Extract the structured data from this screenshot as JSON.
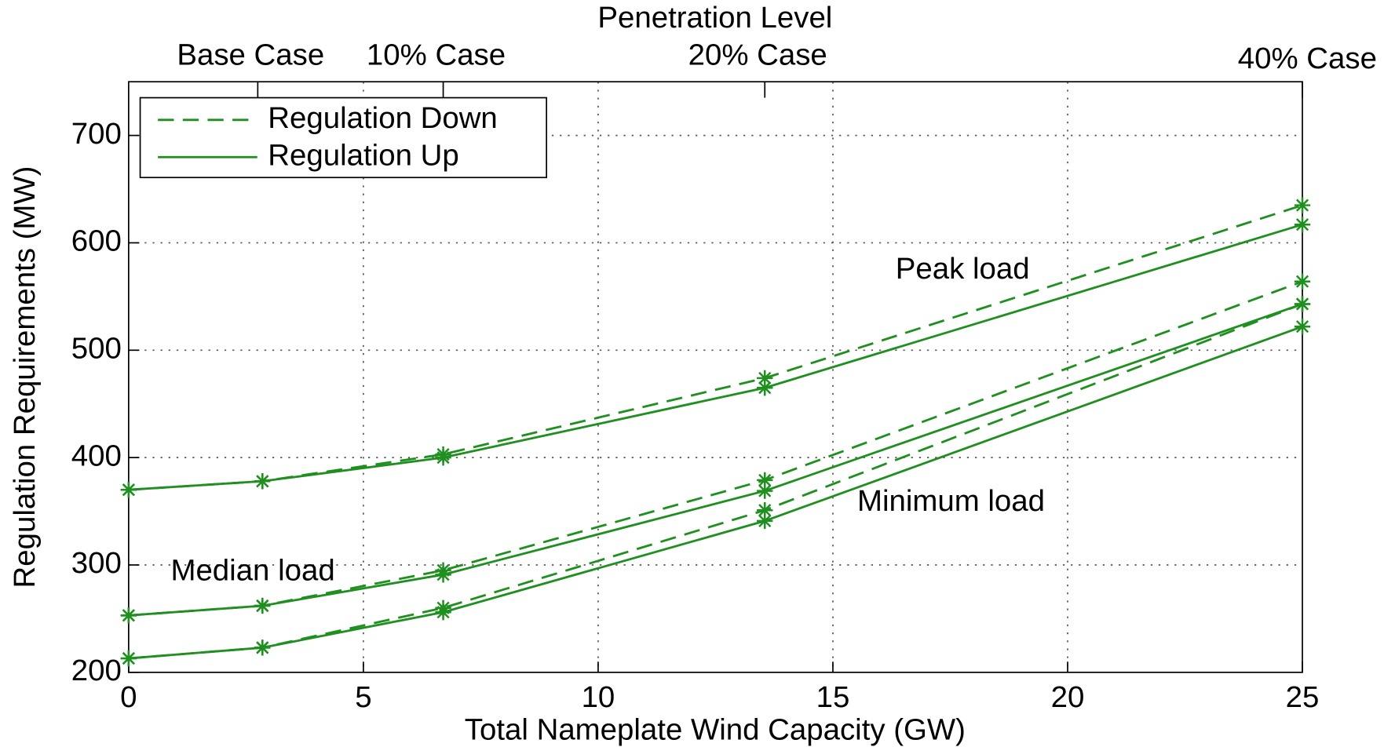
{
  "chart_data": {
    "type": "line",
    "title": "Penetration Level",
    "xlabel": "Total Nameplate Wind Capacity (GW)",
    "ylabel": "Regulation Requirements (MW)",
    "x": [
      0,
      2.85,
      6.7,
      13.55,
      25
    ],
    "xlim": [
      0,
      25
    ],
    "xticks": [
      0,
      5,
      10,
      15,
      20,
      25
    ],
    "ylim": [
      200,
      750
    ],
    "yticks": [
      200,
      300,
      400,
      500,
      600,
      700
    ],
    "top_ticks": [
      {
        "value": 2.75,
        "label": "Base Case"
      },
      {
        "value": 6.7,
        "label": "10% Case"
      },
      {
        "value": 13.55,
        "label": "20% Case"
      },
      {
        "value": 25,
        "label": "40% Case"
      }
    ],
    "grid": true,
    "color": "#1f8f1f",
    "legend_position": "upper left",
    "legend": [
      {
        "name": "Regulation Down",
        "dashed": true
      },
      {
        "name": "Regulation Up",
        "dashed": false
      }
    ],
    "groups": [
      {
        "label": "Peak load",
        "series": [
          {
            "dashed": true,
            "values": [
              370,
              378,
              403,
              474,
              635
            ]
          },
          {
            "dashed": false,
            "values": [
              370,
              378,
              400,
              465,
              617
            ]
          }
        ]
      },
      {
        "label": "Median load",
        "series": [
          {
            "dashed": true,
            "values": [
              253,
              262,
              295,
              379,
              564
            ]
          },
          {
            "dashed": false,
            "values": [
              253,
              262,
              291,
              369,
              543
            ]
          }
        ]
      },
      {
        "label": "Minimum load",
        "series": [
          {
            "dashed": true,
            "values": [
              213,
              223,
              260,
              351,
              543
            ]
          },
          {
            "dashed": false,
            "values": [
              213,
              223,
              256,
              341,
              522
            ]
          }
        ]
      }
    ]
  }
}
